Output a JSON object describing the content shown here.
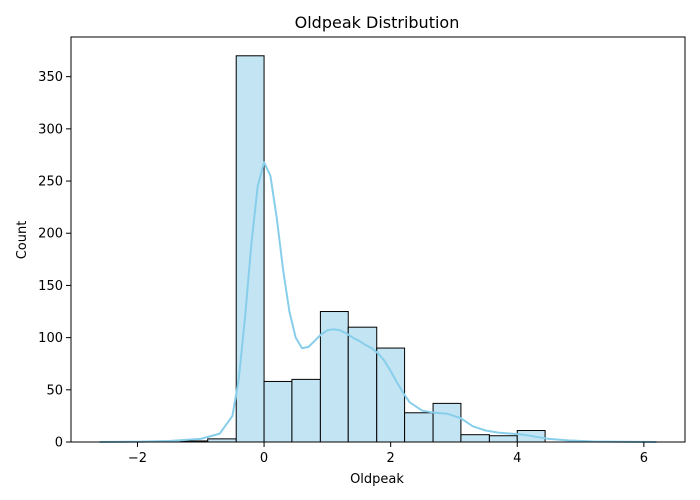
{
  "chart_data": {
    "type": "bar",
    "title": "Oldpeak Distribution",
    "xlabel": "Oldpeak",
    "ylabel": "Count",
    "xlim": [
      -3.05,
      6.65
    ],
    "ylim": [
      0,
      388
    ],
    "x_ticks": [
      -2,
      0,
      2,
      4,
      6
    ],
    "x_tick_labels": [
      "−2",
      "0",
      "2",
      "4",
      "6"
    ],
    "y_ticks": [
      0,
      50,
      100,
      150,
      200,
      250,
      300,
      350
    ],
    "grid": false,
    "legend": "none",
    "bar_color": "#c3e4f3",
    "bar_edge_color": "#000000",
    "kde_color": "#87ceeb",
    "bins": [
      {
        "x0": -1.33,
        "x1": -0.89,
        "count": 1
      },
      {
        "x0": -0.89,
        "x1": -0.44,
        "count": 3
      },
      {
        "x0": -0.44,
        "x1": 0.0,
        "count": 370
      },
      {
        "x0": 0.0,
        "x1": 0.44,
        "count": 58
      },
      {
        "x0": 0.44,
        "x1": 0.89,
        "count": 60
      },
      {
        "x0": 0.89,
        "x1": 1.33,
        "count": 125
      },
      {
        "x0": 1.33,
        "x1": 1.78,
        "count": 110
      },
      {
        "x0": 1.78,
        "x1": 2.22,
        "count": 90
      },
      {
        "x0": 2.22,
        "x1": 2.67,
        "count": 28
      },
      {
        "x0": 2.67,
        "x1": 3.11,
        "count": 37
      },
      {
        "x0": 3.11,
        "x1": 3.56,
        "count": 7
      },
      {
        "x0": 3.56,
        "x1": 4.0,
        "count": 6
      },
      {
        "x0": 4.0,
        "x1": 4.44,
        "count": 11
      }
    ],
    "kde": {
      "x": [
        -2.6,
        -2.0,
        -1.5,
        -1.0,
        -0.7,
        -0.5,
        -0.4,
        -0.3,
        -0.2,
        -0.1,
        0.0,
        0.1,
        0.2,
        0.3,
        0.4,
        0.5,
        0.6,
        0.7,
        0.8,
        0.9,
        1.0,
        1.1,
        1.2,
        1.3,
        1.4,
        1.5,
        1.6,
        1.7,
        1.8,
        1.9,
        2.0,
        2.1,
        2.2,
        2.3,
        2.5,
        2.7,
        2.9,
        3.1,
        3.3,
        3.5,
        3.7,
        3.9,
        4.1,
        4.3,
        4.5,
        4.8,
        5.2,
        5.6,
        6.0,
        6.2
      ],
      "y": [
        0,
        0.3,
        1,
        3,
        8,
        25,
        60,
        120,
        190,
        245,
        268,
        255,
        215,
        165,
        125,
        100,
        90,
        91,
        97,
        103,
        107,
        108,
        107,
        104,
        100,
        97,
        93,
        90,
        85,
        78,
        68,
        57,
        47,
        38,
        30,
        28,
        27,
        23,
        15,
        11,
        9,
        8,
        7,
        5,
        3,
        1.5,
        0.5,
        0.2,
        0.1,
        0
      ]
    }
  }
}
